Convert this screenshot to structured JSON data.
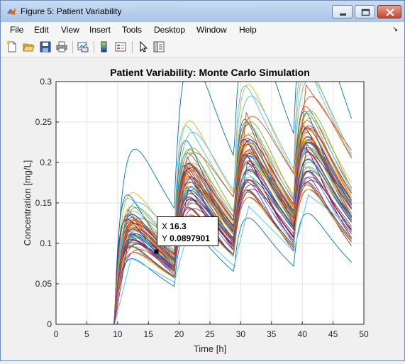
{
  "window": {
    "title": "Figure 5: Patient Variability",
    "controls": {
      "minimize": "minimize",
      "maximize": "maximize",
      "close": "close"
    }
  },
  "menubar": {
    "items": [
      "File",
      "Edit",
      "View",
      "Insert",
      "Tools",
      "Desktop",
      "Window",
      "Help"
    ]
  },
  "toolbar": {
    "icons": [
      "new-figure-icon",
      "open-file-icon",
      "save-icon",
      "print-icon",
      "link-plot-icon",
      "colorbar-icon",
      "legend-icon",
      "pointer-icon",
      "property-inspector-icon"
    ]
  },
  "colors": {
    "series": [
      "#0072bd",
      "#d95319",
      "#edb120",
      "#7e2f8e",
      "#77ac30",
      "#4dbeee",
      "#a2142f"
    ]
  },
  "chart_data": {
    "type": "line",
    "title": "Patient Variability: Monte Carlo Simulation",
    "xlabel": "Time [h]",
    "ylabel": "Concentration [mg/L]",
    "xlim": [
      0,
      50
    ],
    "ylim": [
      0,
      0.3
    ],
    "xticks": [
      "0",
      "5",
      "10",
      "15",
      "20",
      "25",
      "30",
      "35",
      "40",
      "45",
      "50"
    ],
    "yticks": [
      "0",
      "0.05",
      "0.1",
      "0.15",
      "0.2",
      "0.25",
      "0.3"
    ],
    "grid": true,
    "dose_times": [
      9.5,
      19.2,
      28.9,
      38.6
    ],
    "time_end": 48,
    "series_count": 60,
    "highlighted_series": [
      {
        "name": "",
        "values": [
          [
            9.5,
            0
          ],
          [
            11.7,
            0.142
          ],
          [
            19.2,
            0.067
          ],
          [
            21.3,
            0.207
          ],
          [
            28.9,
            0.097
          ],
          [
            30.9,
            0.262
          ],
          [
            38.6,
            0.122
          ],
          [
            40.6,
            0.296
          ],
          [
            48,
            0.215
          ]
        ]
      },
      {
        "name": "",
        "values": [
          [
            9.5,
            0
          ],
          [
            11.9,
            0.111
          ],
          [
            19.2,
            0.07
          ],
          [
            21.5,
            0.168
          ],
          [
            28.9,
            0.1
          ],
          [
            31.1,
            0.201
          ],
          [
            38.6,
            0.12
          ],
          [
            40.8,
            0.222
          ],
          [
            48,
            0.15
          ]
        ]
      },
      {
        "name": "",
        "values": [
          [
            9.5,
            0
          ],
          [
            12.2,
            0.082
          ],
          [
            19.2,
            0.052
          ],
          [
            21.7,
            0.122
          ],
          [
            28.9,
            0.072
          ],
          [
            31.3,
            0.146
          ],
          [
            38.6,
            0.09
          ],
          [
            41.0,
            0.16
          ],
          [
            48,
            0.12
          ]
        ]
      }
    ],
    "datatip": {
      "x_label": "X",
      "x_value": "16.3",
      "y_label": "Y",
      "y_value": "0.0897901"
    }
  }
}
